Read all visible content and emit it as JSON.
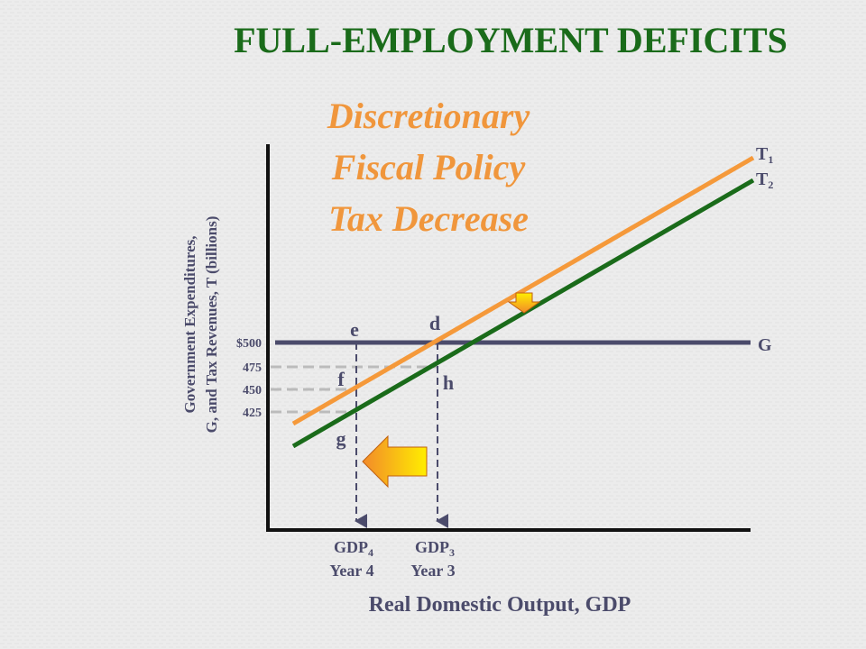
{
  "header": {
    "title": "FULL-EMPLOYMENT DEFICITS"
  },
  "subtitle": {
    "lines": [
      "Discretionary",
      "Fiscal Policy",
      "Tax Decrease"
    ]
  },
  "y_axis": {
    "label_lines": [
      "Government Expenditures,",
      "G, and Tax Revenues, T (billions)"
    ],
    "ticks": [
      "$500",
      "475",
      "450",
      "425"
    ]
  },
  "x_axis": {
    "label": "Real Domestic Output, GDP",
    "ticks": [
      {
        "text": "GDP",
        "sub": "4",
        "year": "Year 4"
      },
      {
        "text": "GDP",
        "sub": "3",
        "year": "Year 3"
      }
    ]
  },
  "curves": [
    {
      "text": "T",
      "sub": "1"
    },
    {
      "text": "T",
      "sub": "2"
    },
    {
      "text": "G"
    }
  ],
  "points": [
    "e",
    "d",
    "f",
    "h",
    "g"
  ]
}
